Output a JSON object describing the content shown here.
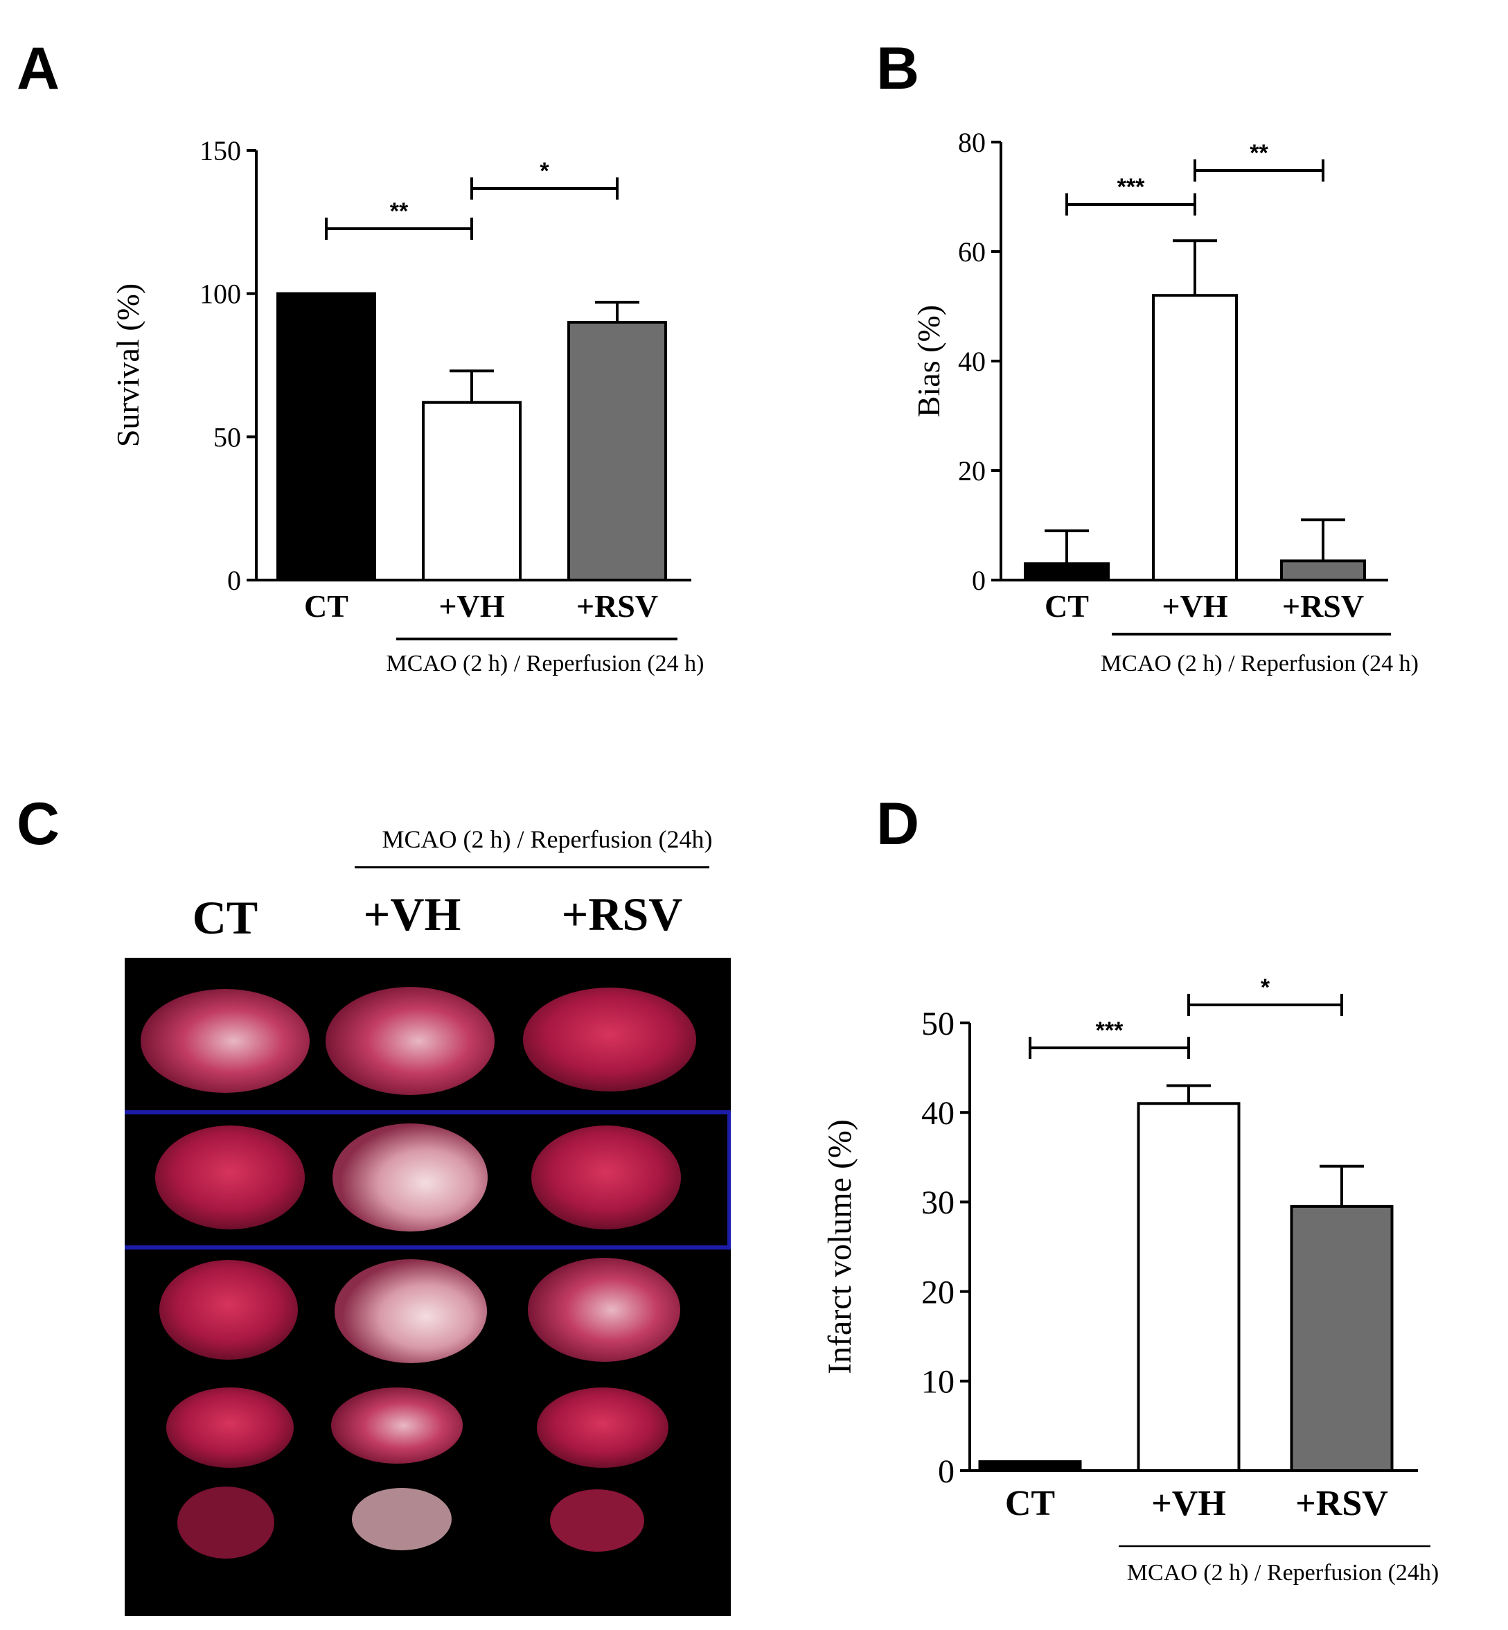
{
  "panels": {
    "A": "A",
    "B": "B",
    "C": "C",
    "D": "D"
  },
  "colors": {
    "CT": "#000000",
    "VH": "#ffffff",
    "RSV": "#6e6e6e",
    "highlight_box": "#1c1ca8"
  },
  "photo": {
    "columns": [
      "CT",
      "+VH",
      "+RSV"
    ],
    "group_label": "MCAO (2 h) / Reperfusion (24h)",
    "rows": 5,
    "highlighted_row": 2
  },
  "chart_data": [
    {
      "id": "A",
      "type": "bar",
      "categories": [
        "CT",
        "+VH",
        "+RSV"
      ],
      "values": [
        100,
        62,
        90
      ],
      "errors": [
        0,
        11,
        7
      ],
      "ylabel": "Survival  (%)",
      "ylim": [
        0,
        150
      ],
      "yticks": [
        0,
        50,
        100,
        150
      ],
      "group_label": "MCAO (2 h) / Reperfusion (24 h)",
      "significance": [
        {
          "from": 0,
          "to": 1,
          "label": "**"
        },
        {
          "from": 1,
          "to": 2,
          "label": "*"
        }
      ]
    },
    {
      "id": "B",
      "type": "bar",
      "categories": [
        "CT",
        "+VH",
        "+RSV"
      ],
      "values": [
        3,
        52,
        3.5
      ],
      "errors": [
        6,
        10,
        7.5
      ],
      "ylabel": "Bias (%)",
      "ylim": [
        0,
        80
      ],
      "yticks": [
        0,
        20,
        40,
        60,
        80
      ],
      "group_label": "MCAO (2 h) / Reperfusion (24 h)",
      "significance": [
        {
          "from": 0,
          "to": 1,
          "label": "***"
        },
        {
          "from": 1,
          "to": 2,
          "label": "**"
        }
      ]
    },
    {
      "id": "D",
      "type": "bar",
      "categories": [
        "CT",
        "+VH",
        "+RSV"
      ],
      "values": [
        1,
        41,
        29.5
      ],
      "errors": [
        0,
        2,
        4.5
      ],
      "ylabel": "Infarct volume (%)",
      "ylim": [
        0,
        50
      ],
      "yticks": [
        0,
        10,
        20,
        30,
        40,
        50
      ],
      "group_label": "MCAO (2 h) / Reperfusion (24h)",
      "significance": [
        {
          "from": 0,
          "to": 1,
          "label": "***"
        },
        {
          "from": 1,
          "to": 2,
          "label": "*"
        }
      ]
    }
  ]
}
